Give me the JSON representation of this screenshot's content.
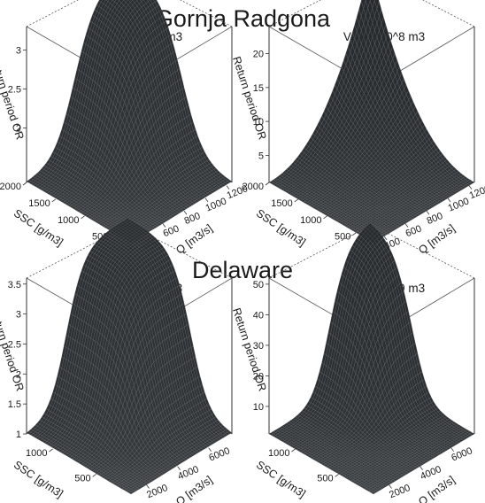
{
  "sections": [
    {
      "title": "Gornja Radgona"
    },
    {
      "title": "Delaware"
    }
  ],
  "chart_data": [
    {
      "type": "surface3d",
      "section": "Gornja Radgona",
      "subtitle": "V=2.4*10^8 m3",
      "zlabel": "Return period OR",
      "ssc_label": "SSC [g/m3]",
      "q_label": "Q [m3/s]",
      "z_ticks": [
        2.0,
        2.5,
        3.0
      ],
      "zlim": [
        1.3,
        3.3
      ],
      "ssc_ticks": [
        500,
        1000,
        1500,
        2000
      ],
      "ssc_range": [
        200,
        2000
      ],
      "q_ticks": [
        400,
        600,
        800,
        1000,
        1200
      ],
      "q_range": [
        300,
        1250
      ],
      "shape": "rounded-dome",
      "colors": {
        "surface": "#2b2e31",
        "mesh": "#6e7479"
      }
    },
    {
      "type": "surface3d",
      "section": "Gornja Radgona",
      "subtitle": "V=5.6*10^8 m3",
      "zlabel": "Return period OR",
      "ssc_label": "SSC [g/m3]",
      "q_label": "Q [m3/s]",
      "z_ticks": [
        5,
        10,
        15,
        20
      ],
      "zlim": [
        1,
        24
      ],
      "ssc_ticks": [
        500,
        1000,
        1500,
        2000
      ],
      "ssc_range": [
        200,
        2000
      ],
      "q_ticks": [
        400,
        600,
        800,
        1000,
        1200
      ],
      "q_range": [
        300,
        1250
      ],
      "shape": "sharp-peak",
      "colors": {
        "surface": "#2b2e31",
        "mesh": "#6e7479"
      }
    },
    {
      "type": "surface3d",
      "section": "Delaware",
      "subtitle": "V=1.1*10^9 m3",
      "zlabel": "Return period OR",
      "ssc_label": "SSC [g/m3]",
      "q_label": "Q [m3/s]",
      "z_ticks": [
        1.0,
        1.5,
        2.0,
        2.5,
        3.0,
        3.5
      ],
      "zlim": [
        1.0,
        3.6
      ],
      "ssc_ticks": [
        500,
        1000
      ],
      "ssc_range": [
        100,
        1300
      ],
      "q_ticks": [
        2000,
        4000,
        6000
      ],
      "q_range": [
        1000,
        7500
      ],
      "shape": "flat-top-dome",
      "colors": {
        "surface": "#2b2e31",
        "mesh": "#6e7479"
      }
    },
    {
      "type": "surface3d",
      "section": "Delaware",
      "subtitle": "V=2.2*10^9 m3",
      "zlabel": "Return period OR",
      "ssc_label": "SSC [g/m3]",
      "q_label": "Q [m3/s]",
      "z_ticks": [
        10,
        20,
        30,
        40,
        50
      ],
      "zlim": [
        1,
        52
      ],
      "ssc_ticks": [
        500,
        1000
      ],
      "ssc_range": [
        100,
        1300
      ],
      "q_ticks": [
        2000,
        4000,
        6000
      ],
      "q_range": [
        1000,
        7500
      ],
      "shape": "narrow-dome",
      "colors": {
        "surface": "#2b2e31",
        "mesh": "#6e7479"
      }
    }
  ]
}
